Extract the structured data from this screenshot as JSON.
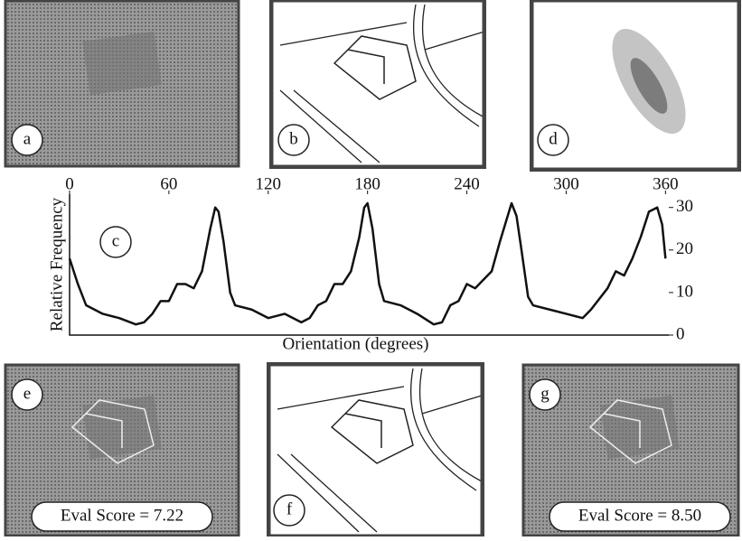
{
  "panels": [
    {
      "label": "a"
    },
    {
      "label": "b"
    },
    {
      "label": "d"
    },
    {
      "label": "e",
      "score": "Eval Score = 7.22"
    },
    {
      "label": "f"
    },
    {
      "label": "g",
      "score": "Eval Score = 8.50"
    }
  ],
  "chart_data": {
    "type": "line",
    "panel_label": "c",
    "x_label": "Orientation (degrees)",
    "y_label": "Relative Frequency",
    "xlim": [
      0,
      362
    ],
    "xticks": [
      0,
      60,
      120,
      180,
      240,
      300,
      360
    ],
    "ylim": [
      0,
      31
    ],
    "yticks": [
      0,
      10,
      20,
      30
    ],
    "grid": false,
    "series": [
      {
        "color": "#111111",
        "x": [
          0,
          5,
          10,
          20,
          30,
          40,
          45,
          50,
          55,
          60,
          65,
          70,
          75,
          80,
          85,
          88,
          90,
          93,
          97,
          100,
          110,
          120,
          130,
          140,
          145,
          150,
          155,
          160,
          165,
          170,
          175,
          178,
          180,
          183,
          187,
          190,
          200,
          210,
          220,
          225,
          230,
          235,
          240,
          245,
          250,
          255,
          260,
          267,
          270,
          273,
          277,
          280,
          290,
          300,
          310,
          315,
          325,
          330,
          335,
          340,
          345,
          350,
          355,
          358,
          360
        ],
        "values": [
          18,
          12,
          7,
          5,
          4,
          2.5,
          3,
          5,
          8,
          8,
          12,
          12,
          11,
          15,
          25,
          30,
          29,
          22,
          10,
          7,
          6,
          4,
          5,
          3,
          4,
          7,
          8,
          12,
          12,
          15,
          23,
          30,
          31,
          25,
          12,
          8,
          7,
          5,
          2.5,
          3,
          7,
          8,
          12,
          11,
          13,
          15,
          22,
          31,
          28,
          20,
          9,
          7,
          6,
          5,
          4,
          6,
          11,
          15,
          14,
          18,
          23,
          29,
          30,
          26,
          18
        ]
      }
    ]
  }
}
